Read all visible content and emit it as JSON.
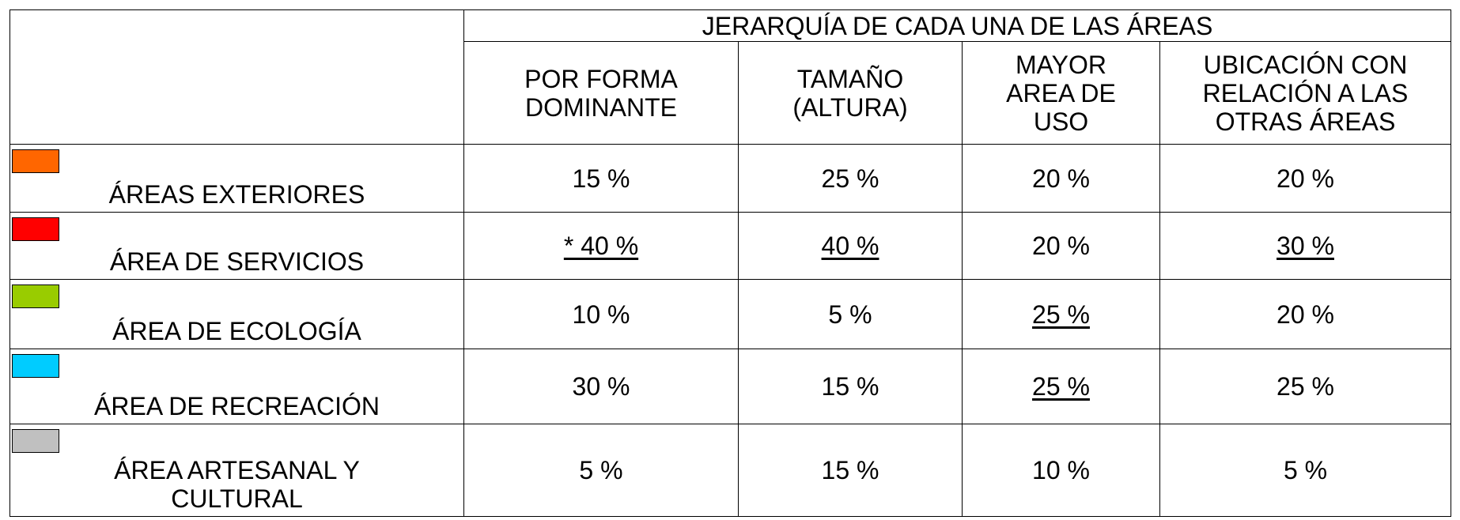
{
  "table": {
    "title": "JERARQUÍA DE CADA UNA DE LAS ÁREAS",
    "columns": [
      "POR FORMA\nDOMINANTE",
      "TAMAÑO\n(ALTURA)",
      "MAYOR\nAREA DE\nUSO",
      "UBICACIÓN CON\nRELACIÓN A LAS\nOTRAS ÁREAS"
    ],
    "rows": [
      {
        "label": "ÁREAS EXTERIORES",
        "color": "#ff6600",
        "values": [
          "15 %",
          "25 %",
          "20 %",
          "20 %"
        ],
        "underline": [
          false,
          false,
          false,
          false
        ]
      },
      {
        "label": "ÁREA DE SERVICIOS",
        "color": "#ff0000",
        "values": [
          "* 40 %",
          "40 %",
          "20 %",
          "30 %"
        ],
        "underline": [
          true,
          true,
          false,
          true
        ]
      },
      {
        "label": "ÁREA DE ECOLOGÍA",
        "color": "#99cc00",
        "values": [
          "10 %",
          "5 %",
          "25 %",
          "20 %"
        ],
        "underline": [
          false,
          false,
          true,
          false
        ]
      },
      {
        "label": "ÁREA DE RECREACIÓN",
        "color": "#00ccff",
        "values": [
          "30 %",
          "15 %",
          "25 %",
          "25 %"
        ],
        "underline": [
          false,
          false,
          true,
          false
        ]
      },
      {
        "label": "ÁREA ARTESANAL Y\nCULTURAL",
        "color": "#c0c0c0",
        "values": [
          "5 %",
          "15 %",
          "10 %",
          "5 %"
        ],
        "underline": [
          false,
          false,
          false,
          false
        ]
      }
    ]
  }
}
